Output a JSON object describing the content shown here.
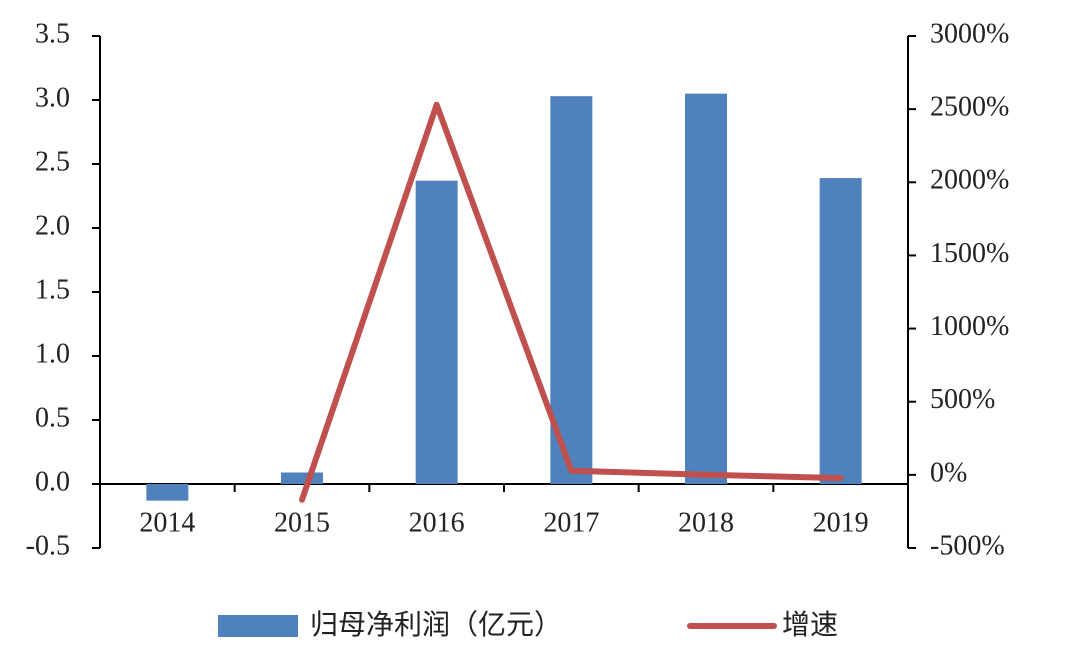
{
  "chart_data": {
    "type": "bar",
    "categories": [
      "2014",
      "2015",
      "2016",
      "2017",
      "2018",
      "2019"
    ],
    "series": [
      {
        "name": "归母净利润（亿元）",
        "type": "bar",
        "color": "#4f81bd",
        "values": [
          -0.13,
          0.09,
          2.37,
          3.03,
          3.05,
          2.39
        ]
      },
      {
        "name": "增速",
        "type": "line",
        "axis": "y2",
        "color": "#c0504d",
        "values": [
          null,
          -170,
          2530,
          28,
          1,
          -22
        ]
      }
    ],
    "ylim": [
      -0.5,
      3.5
    ],
    "yticks": [
      -0.5,
      {
        "value": 0,
        "label": "0.0"
      },
      0.5,
      {
        "value": 1,
        "label": "1.0"
      },
      1.5,
      {
        "value": 2,
        "label": "2.0"
      },
      2.5,
      {
        "value": 3,
        "label": "3.0"
      },
      3.5
    ],
    "y2lim": [
      -500,
      3000
    ],
    "y2ticks": [
      {
        "value": -500,
        "label": "-500%"
      },
      {
        "value": 0,
        "label": "0%"
      },
      {
        "value": 500,
        "label": "500%"
      },
      {
        "value": 1000,
        "label": "1000%"
      },
      {
        "value": 1500,
        "label": "1500%"
      },
      {
        "value": 2000,
        "label": "2000%"
      },
      {
        "value": 2500,
        "label": "2500%"
      },
      {
        "value": 3000,
        "label": "3000%"
      }
    ],
    "grid": false,
    "legend": "bottom"
  }
}
